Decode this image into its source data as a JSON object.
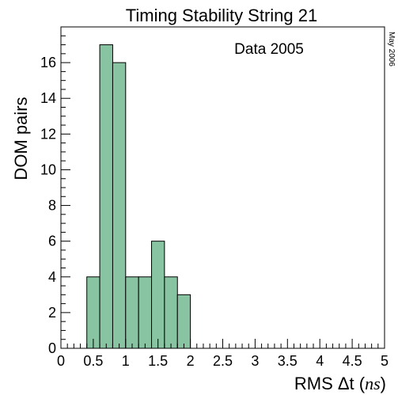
{
  "chart_data": {
    "type": "bar",
    "title": "Timing Stability String 21",
    "xlabel": "RMS Δt (ns)",
    "xlabel_main": "RMS Δt (",
    "xlabel_unit": "ns",
    "xlabel_close": ")",
    "ylabel": "DOM pairs",
    "annotation": "Data 2005",
    "datestamp": "May 2006",
    "xlim": [
      0,
      5
    ],
    "ylim": [
      0,
      18
    ],
    "bin_edges": [
      0.4,
      0.6,
      0.8,
      1.0,
      1.2,
      1.4,
      1.6,
      1.8,
      2.0
    ],
    "values": [
      4,
      17,
      16,
      4,
      4,
      6,
      4,
      3
    ],
    "x_ticks": [
      "0",
      "0.5",
      "1",
      "1.5",
      "2",
      "2.5",
      "3",
      "3.5",
      "4",
      "4.5",
      "5"
    ],
    "y_ticks": [
      "0",
      "2",
      "4",
      "6",
      "8",
      "10",
      "12",
      "14",
      "16"
    ],
    "fill_color": "#88c4a2",
    "edge_color": "#000000",
    "grid": false,
    "legend": "none"
  }
}
